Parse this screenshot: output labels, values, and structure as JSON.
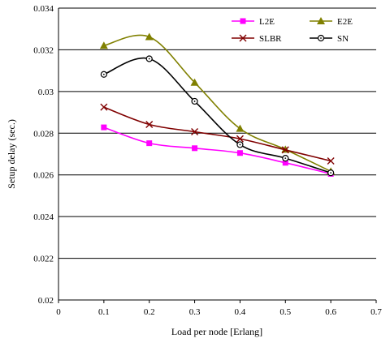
{
  "chart_data": {
    "type": "line",
    "xlabel": "Load per node [Erlang]",
    "ylabel": "Setup delay (sec.)",
    "xlim": [
      0,
      0.7
    ],
    "ylim": [
      0.02,
      0.034
    ],
    "x_ticks": [
      "0",
      "0.1",
      "0.2",
      "0.3",
      "0.4",
      "0.5",
      "0.6",
      "0.7"
    ],
    "y_ticks": [
      "0.02",
      "0.022",
      "0.024",
      "0.026",
      "0.028",
      "0.03",
      "0.032",
      "0.034"
    ],
    "grid": "horizontal",
    "legend_position": "top-right",
    "x": [
      0.1,
      0.2,
      0.3,
      0.4,
      0.5,
      0.6
    ],
    "series": [
      {
        "name": "L2E",
        "color": "#ff00ff",
        "marker": "square",
        "values": [
          0.02828,
          0.02752,
          0.02728,
          0.02705,
          0.02658,
          0.02605
        ]
      },
      {
        "name": "E2E",
        "color": "#808000",
        "marker": "triangle",
        "values": [
          0.0322,
          0.03262,
          0.03043,
          0.02822,
          0.02722,
          0.02617
        ]
      },
      {
        "name": "SLBR",
        "color": "#800000",
        "marker": "x",
        "values": [
          0.02925,
          0.02842,
          0.02807,
          0.02773,
          0.0272,
          0.02667
        ]
      },
      {
        "name": "SN",
        "color": "#000000",
        "marker": "circle",
        "values": [
          0.03082,
          0.03157,
          0.02953,
          0.02745,
          0.0268,
          0.0261
        ]
      }
    ]
  }
}
